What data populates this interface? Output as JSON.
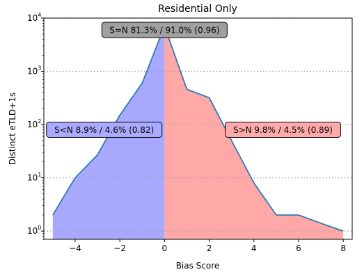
{
  "chart_data": {
    "type": "area",
    "title": "Residential Only",
    "xlabel": "Bias Score",
    "ylabel": "Distinct eTLD+1s",
    "xlim": [
      -5.4,
      8.4
    ],
    "ylim": [
      0.7,
      10000
    ],
    "yscale": "log",
    "x_ticks": [
      -4,
      -2,
      0,
      2,
      4,
      6,
      8
    ],
    "x_tick_labels": [
      "−4",
      "−2",
      "0",
      "2",
      "4",
      "6",
      "8"
    ],
    "y_ticks": [
      1,
      10,
      100,
      1000,
      10000
    ],
    "y_tick_labels": [
      {
        "base": "10",
        "exp": "0"
      },
      {
        "base": "10",
        "exp": "1"
      },
      {
        "base": "10",
        "exp": "2"
      },
      {
        "base": "10",
        "exp": "3"
      },
      {
        "base": "10",
        "exp": "4"
      }
    ],
    "grid": {
      "y_major": true,
      "style": "dotted"
    },
    "series": [
      {
        "x": [
          -5,
          -4,
          -3,
          -2,
          -1,
          0,
          1,
          2,
          3,
          4,
          5,
          6,
          7,
          8
        ],
        "values": [
          2,
          10,
          27,
          150,
          600,
          7000,
          460,
          320,
          50,
          8,
          2,
          2,
          1.4,
          1
        ]
      }
    ],
    "fills": [
      {
        "region": "x<0",
        "color": "#a8a8ff"
      },
      {
        "region": "x>0",
        "color": "#ffa8a8"
      }
    ],
    "line_color": "#2e79b5",
    "annotations": [
      {
        "text": "S=N 81.3% / 91.0% (0.96)",
        "x": 0,
        "y": 6000,
        "bg": "#a0a0a0"
      },
      {
        "text": "S<N 8.9% / 4.6% (0.82)",
        "x": -2.7,
        "y": 80,
        "bg": "#aaaaff"
      },
      {
        "text": "S>N 9.8% / 4.5% (0.89)",
        "x": 5.3,
        "y": 80,
        "bg": "#ffaaaa"
      }
    ]
  }
}
